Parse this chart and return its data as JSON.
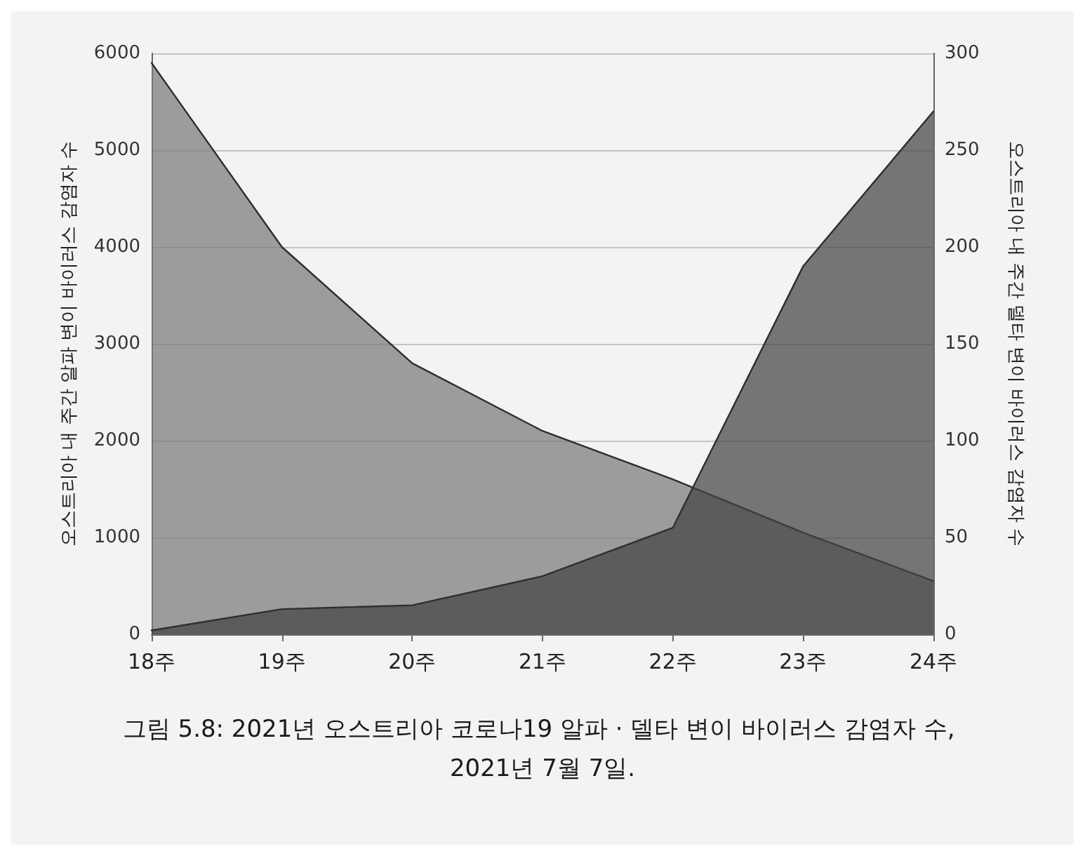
{
  "chart_data": {
    "type": "area",
    "categories": [
      "18주",
      "19주",
      "20주",
      "21주",
      "22주",
      "23주",
      "24주"
    ],
    "series": [
      {
        "color": "#7a7a7a",
        "values": [
          5900,
          4000,
          2800,
          2100,
          1600,
          1050,
          550
        ]
      },
      {
        "color": "#444444",
        "axis": "y2",
        "values": [
          2,
          13,
          15,
          30,
          55,
          190,
          270
        ]
      }
    ],
    "ylabel": "오스트리아 내 주간 알파 변이 바이러스 감염자 수",
    "y2label": "오스트리아 내 주간 델타 변이 바이러스 감염자 수",
    "ylim": [
      0,
      6000
    ],
    "yticks": [
      0,
      1000,
      2000,
      3000,
      4000,
      5000,
      6000
    ],
    "y2lim": [
      0,
      300
    ],
    "y2ticks": [
      0,
      50,
      100,
      150,
      200,
      250,
      300
    ],
    "grid": "y",
    "marker": "none",
    "annotations": [
      "그림 5.8: 2021년 오스트리아 코로나19 알파 · 델타 변이 바이러스 감염자 수, 2021년 7월 7일."
    ]
  }
}
